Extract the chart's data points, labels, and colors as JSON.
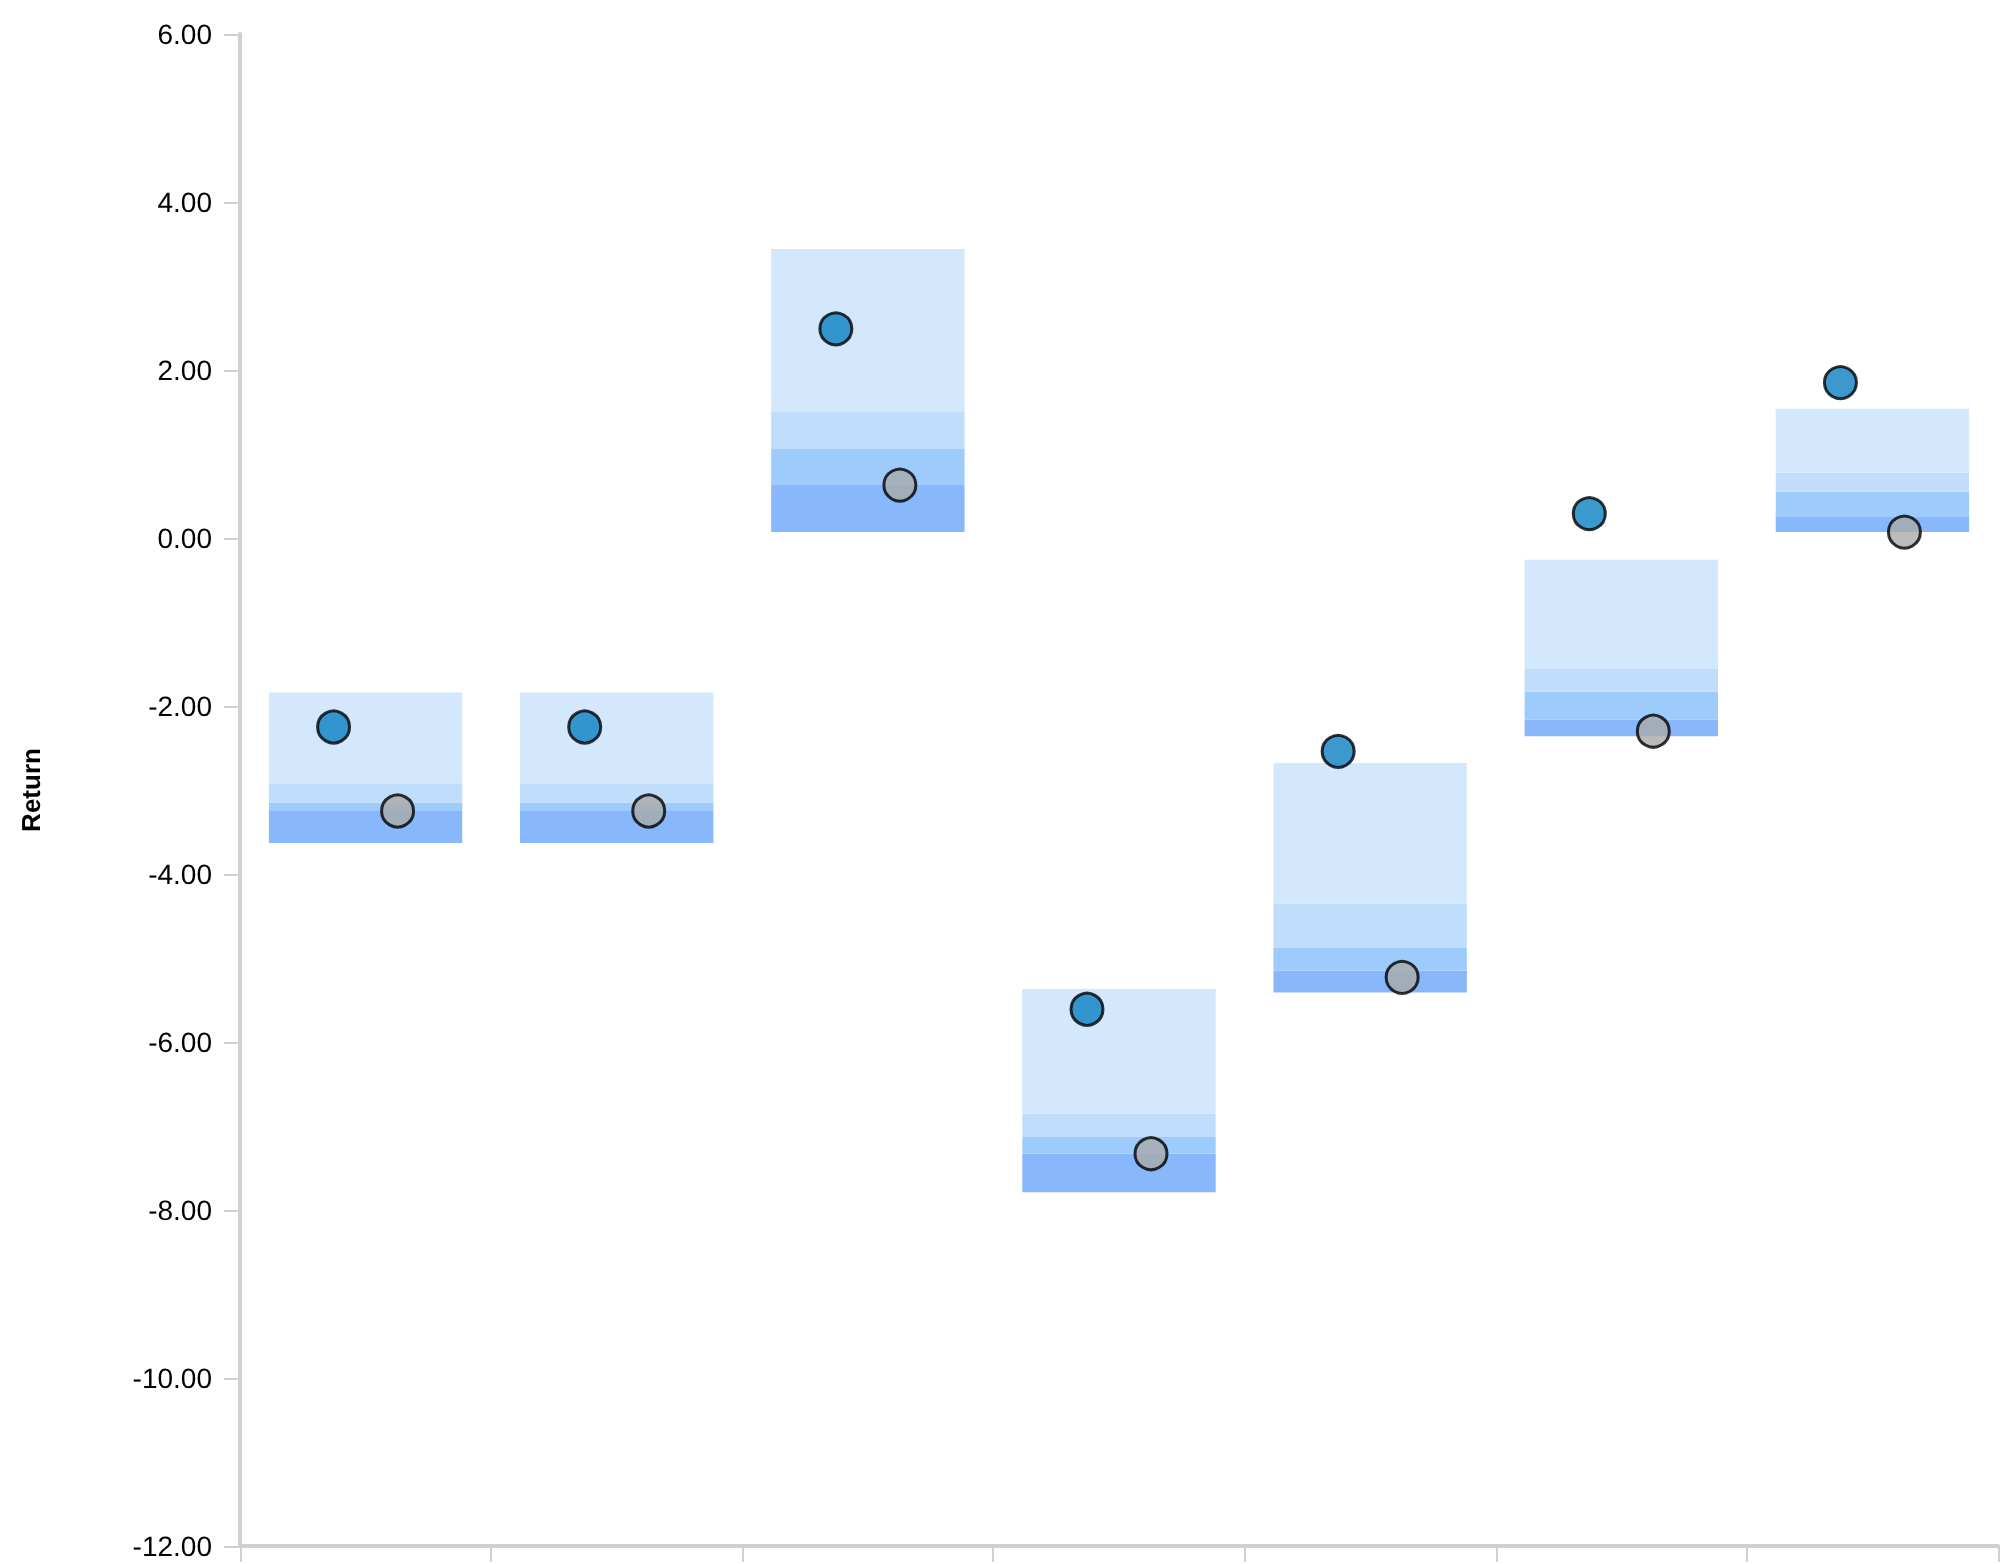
{
  "chart_data": {
    "type": "bar",
    "ylabel": "Return",
    "categories": [
      null,
      null,
      null,
      null,
      null,
      null,
      null
    ],
    "series": [
      {
        "color": "#88b8fb",
        "base": [
          -3.63,
          -3.63,
          0.07,
          -7.79,
          -5.41,
          -2.36,
          0.07
        ],
        "values": [
          0.38,
          0.38,
          0.57,
          0.46,
          0.26,
          0.2,
          0.19
        ]
      },
      {
        "color": "#9ccbfc",
        "base": [
          -3.25,
          -3.25,
          0.64,
          -7.33,
          -5.15,
          -2.16,
          0.26
        ],
        "values": [
          0.1,
          0.1,
          0.42,
          0.2,
          0.27,
          0.33,
          0.29
        ]
      },
      {
        "color": "#c0ddfc",
        "base": [
          -3.15,
          -3.15,
          1.06,
          -7.13,
          -4.88,
          -1.83,
          0.55
        ],
        "values": [
          0.23,
          0.23,
          0.44,
          0.28,
          0.53,
          0.28,
          0.23
        ]
      },
      {
        "color": "#d4e8fd",
        "base": [
          -2.92,
          -2.92,
          1.5,
          -6.85,
          -4.35,
          -1.55,
          0.78
        ],
        "values": [
          1.08,
          1.08,
          1.94,
          1.48,
          1.67,
          1.29,
          0.76
        ]
      },
      {
        "type": "scatter",
        "color": "#0a7fc2",
        "values": [
          -2.25,
          -2.25,
          2.49,
          -5.61,
          -2.54,
          0.29,
          1.85
        ]
      },
      {
        "type": "scatter",
        "color": "#aaaaaa",
        "values": [
          -3.25,
          -3.25,
          0.63,
          -7.33,
          -5.23,
          -2.3,
          0.07
        ]
      }
    ],
    "ylim": [
      -12,
      6
    ],
    "yticks": [
      {
        "value": -12,
        "label": "-12.00"
      },
      {
        "value": -10,
        "label": "-10.00"
      },
      {
        "value": -8,
        "label": "-8.00"
      },
      {
        "value": -6,
        "label": "-6.00"
      },
      {
        "value": -4,
        "label": "-4.00"
      },
      {
        "value": -2,
        "label": "-2.00"
      },
      {
        "value": 0,
        "label": "0.00"
      },
      {
        "value": 2,
        "label": "2.00"
      },
      {
        "value": 4,
        "label": "4.00"
      },
      {
        "value": 6,
        "label": "6.00"
      }
    ],
    "grid": false,
    "marker": "circle"
  }
}
